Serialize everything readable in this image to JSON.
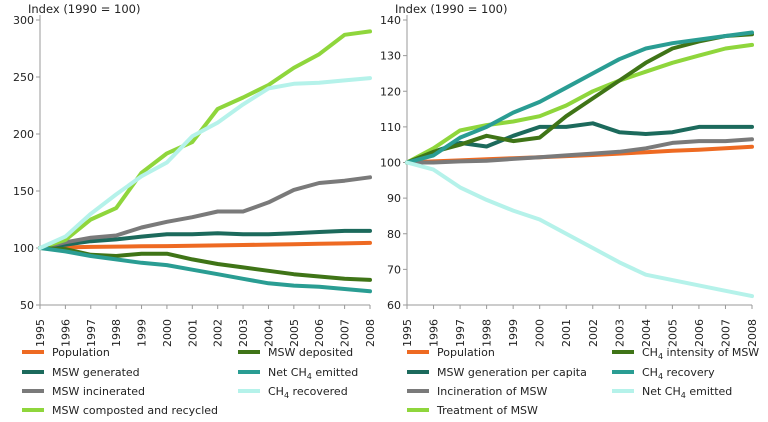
{
  "chart_data": [
    {
      "type": "line",
      "ylabel": "Index (1990 = 100)",
      "ylim": [
        50,
        300
      ],
      "yticks": [
        50,
        100,
        150,
        200,
        250,
        300
      ],
      "x": [
        "1995",
        "1996",
        "1997",
        "1998",
        "1999",
        "2000",
        "2001",
        "2002",
        "2003",
        "2004",
        "2005",
        "2006",
        "2007",
        "2008"
      ],
      "grid": false,
      "legend_position": "bottom",
      "series": [
        {
          "name": "Population",
          "color": "#ee6a22",
          "values": [
            100,
            100.5,
            101,
            101.2,
            101.5,
            101.7,
            102,
            102.3,
            102.6,
            103,
            103.3,
            103.7,
            104,
            104.5
          ]
        },
        {
          "name": "MSW generated",
          "color": "#1c6a5c",
          "values": [
            100,
            103,
            106,
            107.5,
            110,
            112,
            112,
            113,
            112,
            112,
            113,
            114,
            115,
            115
          ]
        },
        {
          "name": "MSW incinerated",
          "color": "#7a7a7a",
          "values": [
            100,
            105,
            109,
            111,
            118,
            123,
            127,
            132,
            132,
            140,
            151,
            157,
            159,
            162
          ]
        },
        {
          "name": "MSW composted and recycled",
          "color": "#8fd63c",
          "values": [
            100,
            107,
            125,
            135,
            166,
            183,
            193,
            222,
            232,
            243,
            258,
            270,
            287,
            290
          ]
        },
        {
          "name": "MSW deposited",
          "color": "#3f7417",
          "values": [
            100,
            99,
            94,
            93,
            95,
            95,
            90,
            86,
            83,
            80,
            77,
            75,
            73,
            72
          ]
        },
        {
          "name": "Net CH4 emitted",
          "name_base": "Net CH",
          "name_sub": "4",
          "name_rest": " emitted",
          "color": "#2a9d93",
          "values": [
            100,
            97,
            93,
            90,
            87,
            85,
            81,
            77,
            73,
            69,
            67,
            66,
            64,
            62
          ]
        },
        {
          "name": "CH4 recovered",
          "name_base": "CH",
          "name_sub": "4",
          "name_rest": " recovered",
          "color": "#b5f2ea",
          "values": [
            100,
            110,
            130,
            147,
            163,
            175,
            198,
            210,
            226,
            240,
            244,
            245,
            247,
            249
          ]
        }
      ]
    },
    {
      "type": "line",
      "ylabel": "Index (1990 = 100)",
      "ylim": [
        60,
        140
      ],
      "yticks": [
        60,
        70,
        80,
        90,
        100,
        110,
        120,
        130,
        140
      ],
      "x": [
        "1995",
        "1996",
        "1997",
        "1998",
        "1999",
        "2000",
        "2001",
        "2002",
        "2003",
        "2004",
        "2005",
        "2006",
        "2007",
        "2008"
      ],
      "grid": false,
      "legend_position": "bottom",
      "series": [
        {
          "name": "Population",
          "color": "#ee6a22",
          "values": [
            100,
            100.3,
            100.6,
            100.9,
            101.2,
            101.5,
            101.8,
            102.1,
            102.5,
            102.9,
            103.3,
            103.6,
            104,
            104.4
          ]
        },
        {
          "name": "MSW generation per capita",
          "color": "#1c6a5c",
          "values": [
            100,
            103,
            105.5,
            104.5,
            107.5,
            110,
            110,
            111,
            108.5,
            108,
            108.5,
            110,
            110,
            110
          ]
        },
        {
          "name": "Incineration of MSW",
          "color": "#7a7a7a",
          "values": [
            100,
            100,
            100.3,
            100.5,
            101,
            101.5,
            102,
            102.5,
            103,
            104,
            105.5,
            106,
            106,
            106.5
          ]
        },
        {
          "name": "Treatment of MSW",
          "color": "#8fd63c",
          "values": [
            100,
            104,
            109,
            110.5,
            111.5,
            113,
            116,
            120,
            123,
            125.5,
            128,
            130,
            132,
            133
          ]
        },
        {
          "name": "CH4 intensity of MSW",
          "name_base": "CH",
          "name_sub": "4",
          "name_rest": " intensity of MSW",
          "color": "#3f7417",
          "values": [
            100,
            103,
            105,
            107.5,
            106,
            107,
            113,
            118,
            123,
            128,
            132,
            134,
            135.5,
            136
          ]
        },
        {
          "name": "CH4 recovery",
          "name_base": "CH",
          "name_sub": "4",
          "name_rest": " recovery",
          "color": "#2a9d93",
          "values": [
            100,
            102,
            107,
            110,
            114,
            117,
            121,
            125,
            129,
            132,
            133.5,
            134.5,
            135.5,
            136.5
          ]
        },
        {
          "name": "Net CH4 emitted",
          "name_base": "Net CH",
          "name_sub": "4",
          "name_rest": " emitted",
          "color": "#b5f2ea",
          "values": [
            100,
            98,
            93,
            89.5,
            86.5,
            84,
            80,
            76,
            72,
            68.5,
            67,
            65.5,
            64,
            62.5
          ]
        }
      ]
    }
  ]
}
